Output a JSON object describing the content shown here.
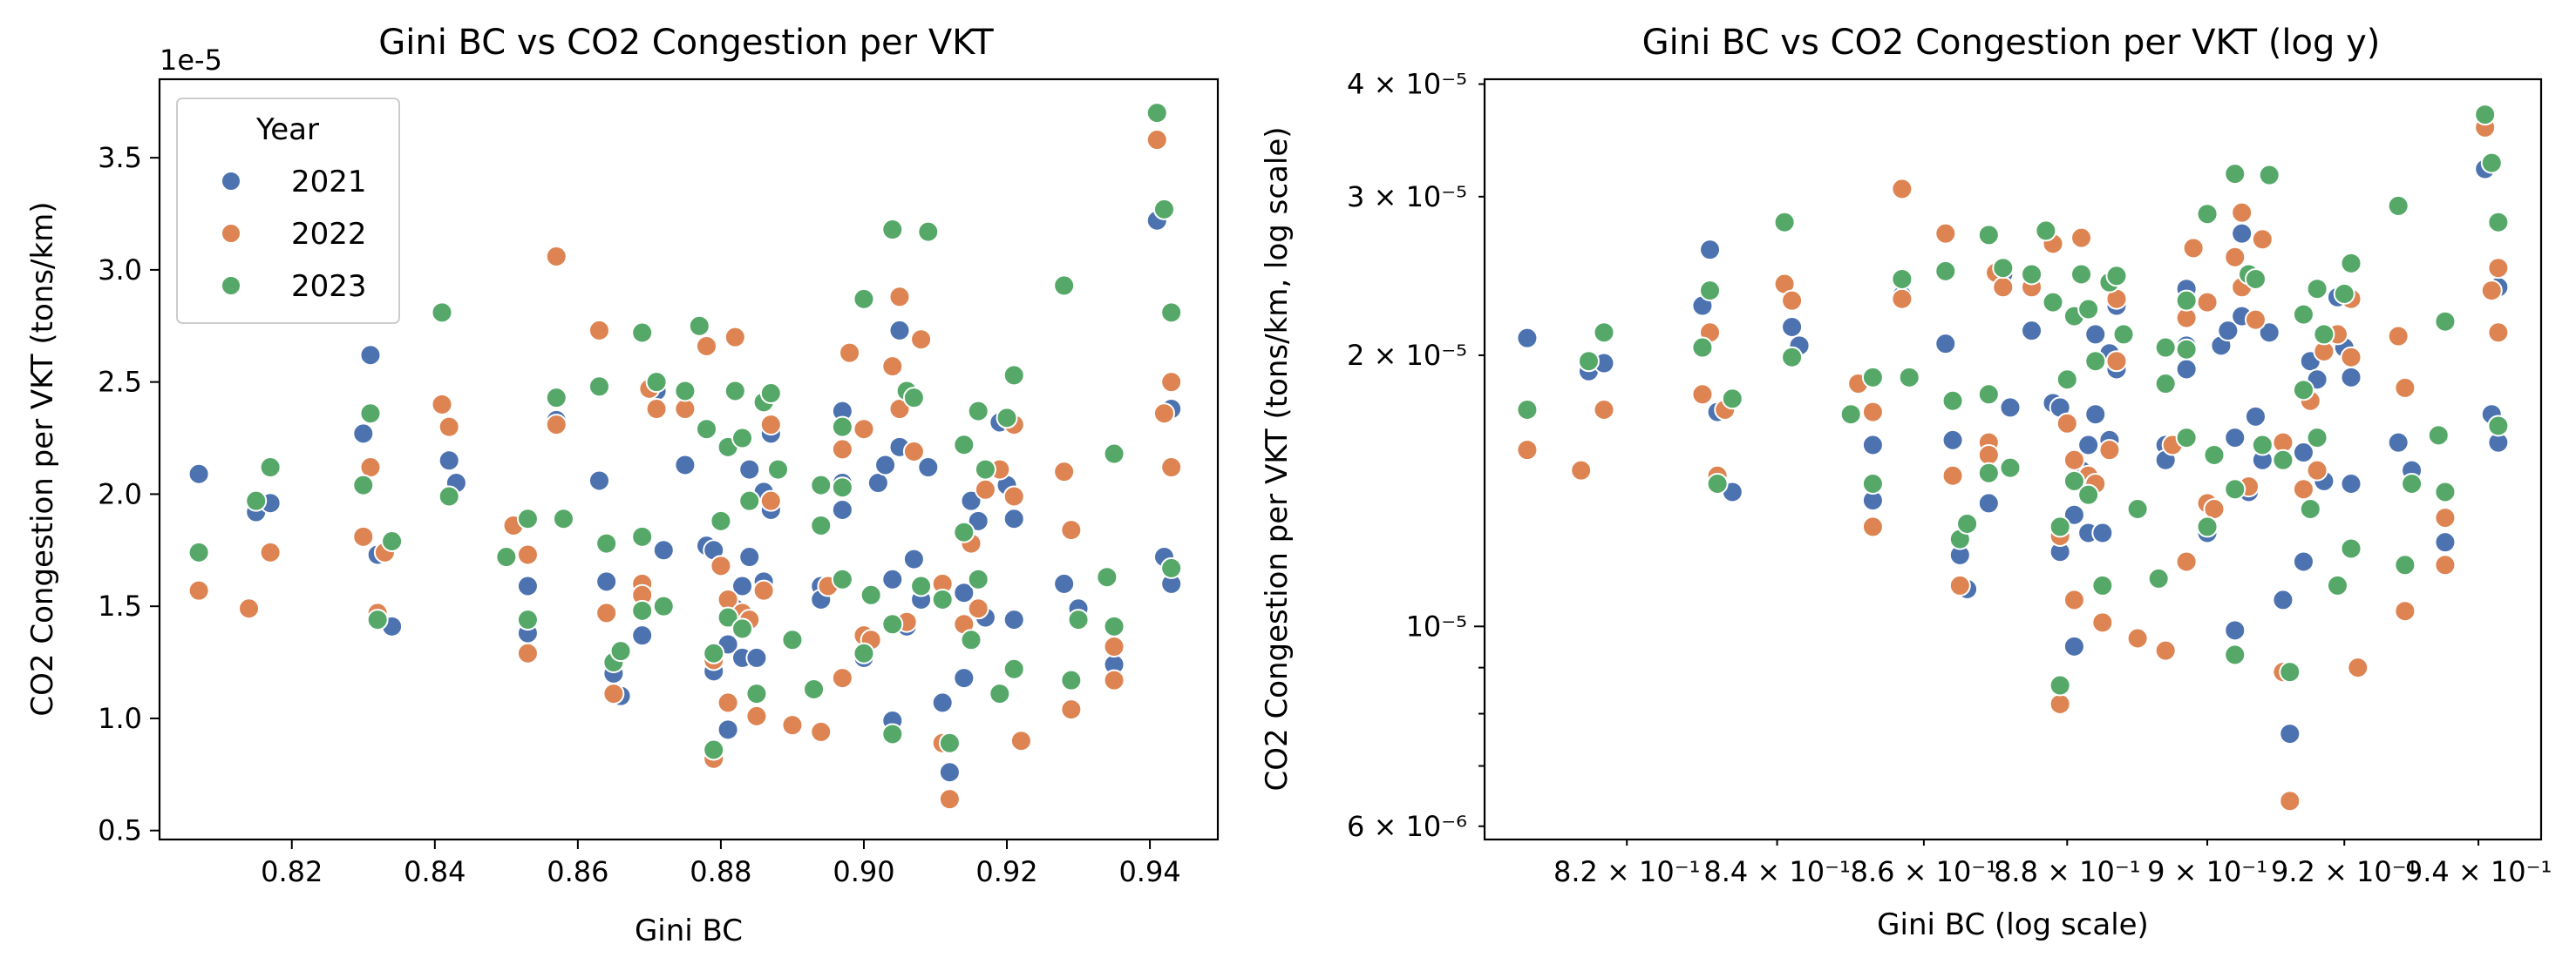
{
  "colors": {
    "2021": "#4c72b0",
    "2022": "#dd8452",
    "2023": "#55a868"
  },
  "chart_data": [
    {
      "type": "scatter",
      "title": "Gini BC vs CO2 Congestion per VKT",
      "xlabel": "Gini BC",
      "ylabel": "CO2 Congestion per VKT (tons/km)",
      "y_offset_text": "1e-5",
      "xlim": [
        0.8015,
        0.9495
      ],
      "ylim": [
        4.6e-06,
        3.85e-05
      ],
      "xticks": [
        0.82,
        0.84,
        0.86,
        0.88,
        0.9,
        0.92,
        0.94
      ],
      "xtick_labels": [
        "0.82",
        "0.84",
        "0.86",
        "0.88",
        "0.90",
        "0.92",
        "0.94"
      ],
      "yticks": [
        5e-06,
        1e-05,
        1.5e-05,
        2e-05,
        2.5e-05,
        3e-05,
        3.5e-05
      ],
      "ytick_labels": [
        "0.5",
        "1.0",
        "1.5",
        "2.0",
        "2.5",
        "3.0",
        "3.5"
      ],
      "legend": {
        "title": "Year",
        "placement": "upper-left",
        "entries": [
          "2021",
          "2022",
          "2023"
        ]
      }
    },
    {
      "type": "scatter",
      "title": "Gini BC vs CO2 Congestion per VKT (log y)",
      "xlabel": "Gini BC (log scale)",
      "ylabel": "CO2 Congestion per VKT (tons/km, log scale)",
      "xscale": "log",
      "yscale": "log",
      "xlim": [
        0.8015,
        0.9495
      ],
      "ylim": [
        5.8e-06,
        4.05e-05
      ],
      "xtick_labels": [
        "8.2 × 10⁻¹",
        "8.4 × 10⁻¹",
        "8.6 × 10⁻¹",
        "8.8 × 10⁻¹",
        "9 × 10⁻¹",
        "9.2 × 10⁻¹",
        "9.4 × 10⁻¹"
      ],
      "ytick_labels": [
        "6 × 10⁻⁶",
        "10⁻⁵",
        "2 × 10⁻⁵",
        "3 × 10⁻⁵",
        "4 × 10⁻⁵"
      ]
    }
  ],
  "series": [
    {
      "name": "2021",
      "points": [
        [
          0.807,
          2.09e-05
        ],
        [
          0.815,
          1.92e-05
        ],
        [
          0.817,
          1.96e-05
        ],
        [
          0.83,
          2.27e-05
        ],
        [
          0.831,
          2.62e-05
        ],
        [
          0.832,
          1.73e-05
        ],
        [
          0.834,
          1.41e-05
        ],
        [
          0.842,
          2.15e-05
        ],
        [
          0.843,
          2.05e-05
        ],
        [
          0.853,
          1.59e-05
        ],
        [
          0.853,
          1.38e-05
        ],
        [
          0.857,
          2.33e-05
        ],
        [
          0.863,
          2.06e-05
        ],
        [
          0.864,
          1.61e-05
        ],
        [
          0.865,
          1.2e-05
        ],
        [
          0.866,
          1.1e-05
        ],
        [
          0.869,
          1.37e-05
        ],
        [
          0.871,
          2.46e-05
        ],
        [
          0.872,
          1.75e-05
        ],
        [
          0.875,
          2.13e-05
        ],
        [
          0.878,
          1.77e-05
        ],
        [
          0.879,
          1.75e-05
        ],
        [
          0.879,
          1.21e-05
        ],
        [
          0.88,
          1.68e-05
        ],
        [
          0.881,
          9.5e-06
        ],
        [
          0.881,
          1.33e-05
        ],
        [
          0.882,
          1.49e-05
        ],
        [
          0.883,
          1.27e-05
        ],
        [
          0.883,
          1.59e-05
        ],
        [
          0.884,
          2.11e-05
        ],
        [
          0.884,
          1.72e-05
        ],
        [
          0.885,
          1.27e-05
        ],
        [
          0.886,
          2.01e-05
        ],
        [
          0.886,
          1.61e-05
        ],
        [
          0.887,
          1.93e-05
        ],
        [
          0.887,
          2.27e-05
        ],
        [
          0.894,
          1.59e-05
        ],
        [
          0.894,
          1.53e-05
        ],
        [
          0.897,
          1.93e-05
        ],
        [
          0.897,
          2.05e-05
        ],
        [
          0.897,
          2.37e-05
        ],
        [
          0.9,
          1.27e-05
        ],
        [
          0.902,
          2.05e-05
        ],
        [
          0.903,
          2.13e-05
        ],
        [
          0.904,
          9.9e-06
        ],
        [
          0.904,
          1.62e-05
        ],
        [
          0.905,
          2.21e-05
        ],
        [
          0.905,
          2.73e-05
        ],
        [
          0.906,
          1.41e-05
        ],
        [
          0.907,
          1.71e-05
        ],
        [
          0.908,
          1.53e-05
        ],
        [
          0.909,
          2.12e-05
        ],
        [
          0.911,
          1.07e-05
        ],
        [
          0.912,
          7.6e-06
        ],
        [
          0.914,
          1.18e-05
        ],
        [
          0.914,
          1.56e-05
        ],
        [
          0.915,
          1.97e-05
        ],
        [
          0.916,
          1.88e-05
        ],
        [
          0.917,
          1.45e-05
        ],
        [
          0.919,
          2.32e-05
        ],
        [
          0.92,
          2.04e-05
        ],
        [
          0.921,
          1.89e-05
        ],
        [
          0.921,
          1.44e-05
        ],
        [
          0.928,
          1.6e-05
        ],
        [
          0.93,
          1.49e-05
        ],
        [
          0.935,
          1.24e-05
        ],
        [
          0.941,
          3.22e-05
        ],
        [
          0.942,
          1.72e-05
        ],
        [
          0.943,
          2.38e-05
        ],
        [
          0.943,
          1.6e-05
        ]
      ]
    },
    {
      "name": "2022",
      "points": [
        [
          0.807,
          1.57e-05
        ],
        [
          0.814,
          1.49e-05
        ],
        [
          0.817,
          1.74e-05
        ],
        [
          0.83,
          1.81e-05
        ],
        [
          0.831,
          2.12e-05
        ],
        [
          0.832,
          1.47e-05
        ],
        [
          0.833,
          1.74e-05
        ],
        [
          0.841,
          2.4e-05
        ],
        [
          0.842,
          2.3e-05
        ],
        [
          0.851,
          1.86e-05
        ],
        [
          0.853,
          1.73e-05
        ],
        [
          0.853,
          1.29e-05
        ],
        [
          0.857,
          3.06e-05
        ],
        [
          0.857,
          2.31e-05
        ],
        [
          0.863,
          2.73e-05
        ],
        [
          0.864,
          1.47e-05
        ],
        [
          0.865,
          1.11e-05
        ],
        [
          0.869,
          1.6e-05
        ],
        [
          0.869,
          1.55e-05
        ],
        [
          0.87,
          2.47e-05
        ],
        [
          0.871,
          2.38e-05
        ],
        [
          0.875,
          2.38e-05
        ],
        [
          0.878,
          2.66e-05
        ],
        [
          0.879,
          1.26e-05
        ],
        [
          0.879,
          8.2e-06
        ],
        [
          0.88,
          1.68e-05
        ],
        [
          0.881,
          1.53e-05
        ],
        [
          0.881,
          1.07e-05
        ],
        [
          0.882,
          2.7e-05
        ],
        [
          0.883,
          1.47e-05
        ],
        [
          0.884,
          1.44e-05
        ],
        [
          0.885,
          1.01e-05
        ],
        [
          0.886,
          1.57e-05
        ],
        [
          0.887,
          2.31e-05
        ],
        [
          0.887,
          1.97e-05
        ],
        [
          0.89,
          9.7e-06
        ],
        [
          0.894,
          9.4e-06
        ],
        [
          0.895,
          1.59e-05
        ],
        [
          0.897,
          1.18e-05
        ],
        [
          0.897,
          2.2e-05
        ],
        [
          0.898,
          2.63e-05
        ],
        [
          0.9,
          2.29e-05
        ],
        [
          0.9,
          1.37e-05
        ],
        [
          0.901,
          1.35e-05
        ],
        [
          0.904,
          2.57e-05
        ],
        [
          0.905,
          2.88e-05
        ],
        [
          0.905,
          2.38e-05
        ],
        [
          0.906,
          1.43e-05
        ],
        [
          0.907,
          2.19e-05
        ],
        [
          0.908,
          2.69e-05
        ],
        [
          0.911,
          1.6e-05
        ],
        [
          0.911,
          8.9e-06
        ],
        [
          0.912,
          6.4e-06
        ],
        [
          0.914,
          1.42e-05
        ],
        [
          0.915,
          1.78e-05
        ],
        [
          0.916,
          1.49e-05
        ],
        [
          0.917,
          2.02e-05
        ],
        [
          0.919,
          2.11e-05
        ],
        [
          0.921,
          1.99e-05
        ],
        [
          0.921,
          2.31e-05
        ],
        [
          0.922,
          9e-06
        ],
        [
          0.928,
          2.1e-05
        ],
        [
          0.929,
          1.04e-05
        ],
        [
          0.929,
          1.84e-05
        ],
        [
          0.935,
          1.17e-05
        ],
        [
          0.935,
          1.32e-05
        ],
        [
          0.941,
          3.58e-05
        ],
        [
          0.942,
          2.36e-05
        ],
        [
          0.943,
          2.12e-05
        ],
        [
          0.943,
          2.5e-05
        ]
      ]
    },
    {
      "name": "2023",
      "points": [
        [
          0.807,
          1.74e-05
        ],
        [
          0.815,
          1.97e-05
        ],
        [
          0.817,
          2.12e-05
        ],
        [
          0.83,
          2.04e-05
        ],
        [
          0.831,
          2.36e-05
        ],
        [
          0.832,
          1.44e-05
        ],
        [
          0.834,
          1.79e-05
        ],
        [
          0.841,
          2.81e-05
        ],
        [
          0.842,
          1.99e-05
        ],
        [
          0.85,
          1.72e-05
        ],
        [
          0.853,
          1.89e-05
        ],
        [
          0.853,
          1.44e-05
        ],
        [
          0.857,
          2.43e-05
        ],
        [
          0.858,
          1.89e-05
        ],
        [
          0.863,
          2.48e-05
        ],
        [
          0.864,
          1.78e-05
        ],
        [
          0.865,
          1.25e-05
        ],
        [
          0.866,
          1.3e-05
        ],
        [
          0.869,
          1.48e-05
        ],
        [
          0.869,
          1.81e-05
        ],
        [
          0.869,
          2.72e-05
        ],
        [
          0.872,
          1.5e-05
        ],
        [
          0.871,
          2.5e-05
        ],
        [
          0.875,
          2.46e-05
        ],
        [
          0.877,
          2.75e-05
        ],
        [
          0.878,
          2.29e-05
        ],
        [
          0.879,
          1.29e-05
        ],
        [
          0.879,
          8.6e-06
        ],
        [
          0.88,
          1.88e-05
        ],
        [
          0.881,
          2.21e-05
        ],
        [
          0.881,
          1.45e-05
        ],
        [
          0.882,
          2.46e-05
        ],
        [
          0.883,
          1.4e-05
        ],
        [
          0.883,
          2.25e-05
        ],
        [
          0.884,
          1.97e-05
        ],
        [
          0.885,
          1.11e-05
        ],
        [
          0.886,
          2.41e-05
        ],
        [
          0.887,
          2.45e-05
        ],
        [
          0.888,
          2.11e-05
        ],
        [
          0.89,
          1.35e-05
        ],
        [
          0.893,
          1.13e-05
        ],
        [
          0.894,
          1.86e-05
        ],
        [
          0.894,
          2.04e-05
        ],
        [
          0.897,
          2.03e-05
        ],
        [
          0.897,
          2.3e-05
        ],
        [
          0.897,
          1.62e-05
        ],
        [
          0.9,
          1.29e-05
        ],
        [
          0.9,
          2.87e-05
        ],
        [
          0.901,
          1.55e-05
        ],
        [
          0.904,
          3.18e-05
        ],
        [
          0.904,
          9.3e-06
        ],
        [
          0.904,
          1.42e-05
        ],
        [
          0.906,
          2.46e-05
        ],
        [
          0.907,
          2.43e-05
        ],
        [
          0.908,
          1.59e-05
        ],
        [
          0.909,
          3.17e-05
        ],
        [
          0.911,
          1.53e-05
        ],
        [
          0.912,
          8.9e-06
        ],
        [
          0.914,
          1.83e-05
        ],
        [
          0.914,
          2.22e-05
        ],
        [
          0.915,
          1.35e-05
        ],
        [
          0.916,
          2.37e-05
        ],
        [
          0.916,
          1.62e-05
        ],
        [
          0.917,
          2.11e-05
        ],
        [
          0.919,
          1.11e-05
        ],
        [
          0.92,
          2.34e-05
        ],
        [
          0.921,
          2.53e-05
        ],
        [
          0.921,
          1.22e-05
        ],
        [
          0.928,
          2.93e-05
        ],
        [
          0.929,
          1.17e-05
        ],
        [
          0.93,
          1.44e-05
        ],
        [
          0.934,
          1.63e-05
        ],
        [
          0.935,
          2.18e-05
        ],
        [
          0.935,
          1.41e-05
        ],
        [
          0.941,
          3.7e-05
        ],
        [
          0.942,
          3.27e-05
        ],
        [
          0.943,
          2.81e-05
        ],
        [
          0.943,
          1.67e-05
        ]
      ]
    }
  ]
}
